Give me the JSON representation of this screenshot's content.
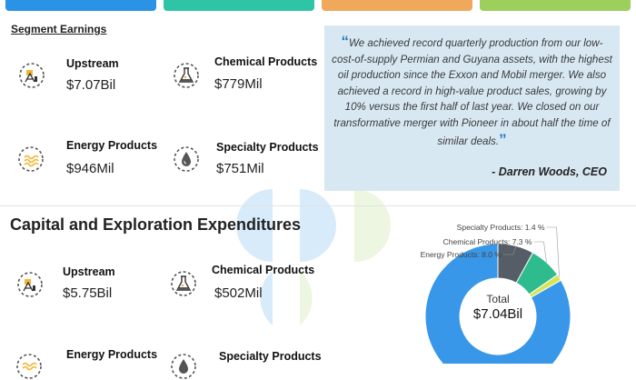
{
  "colors": {
    "top_bar": [
      "#2b93e6",
      "#2ec4a6",
      "#f0a85a",
      "#9ccf5b"
    ],
    "quote_bg": "#d8e8f3",
    "pie": [
      "#3897e8",
      "#555d66",
      "#2ebc8e",
      "#d9e356"
    ]
  },
  "segment_earnings": {
    "title": "Segment Earnings",
    "items": [
      {
        "name": "Upstream",
        "value": "$7.07Bil",
        "icon": "oil-pump-icon"
      },
      {
        "name": "Chemical Products",
        "value": "$779Mil",
        "icon": "flask-icon"
      },
      {
        "name": "Energy Products",
        "value": "$946Mil",
        "icon": "fire-icon"
      },
      {
        "name": "Specialty Products",
        "value": "$751Mil",
        "icon": "drop-icon"
      }
    ]
  },
  "quote": {
    "text": "We achieved record quarterly production from our low-cost-of-supply Permian and Guyana assets, with the highest oil production since the Exxon and Mobil merger. We also achieved a record in high-value product sales, growing by 10% versus the first half of last year. We closed on our transformative merger with Pioneer in about half the time of similar deals.",
    "open_mark": "“",
    "close_mark": "”",
    "author": "- Darren Woods, CEO"
  },
  "capex": {
    "title": "Capital and Exploration Expenditures",
    "items": [
      {
        "name": "Upstream",
        "value": "$5.75Bil",
        "icon": "oil-pump-icon"
      },
      {
        "name": "Chemical Products",
        "value": "$502Mil",
        "icon": "flask-icon"
      },
      {
        "name": "Energy Products",
        "value": "",
        "icon": "fire-icon"
      },
      {
        "name": "Specialty Products",
        "value": "",
        "icon": "drop-icon"
      }
    ]
  },
  "chart_data": {
    "type": "pie",
    "center_label": "Total",
    "center_value": "$7.04Bil",
    "slices": [
      {
        "name": "Upstream",
        "value": 83.3,
        "label": ""
      },
      {
        "name": "Energy Products",
        "value": 8.0,
        "label": "Energy Products: 8.0 %"
      },
      {
        "name": "Chemical Products",
        "value": 7.3,
        "label": "Chemical Products: 7.3 %"
      },
      {
        "name": "Specialty Products",
        "value": 1.4,
        "label": "Specialty Products: 1.4 %"
      }
    ]
  }
}
